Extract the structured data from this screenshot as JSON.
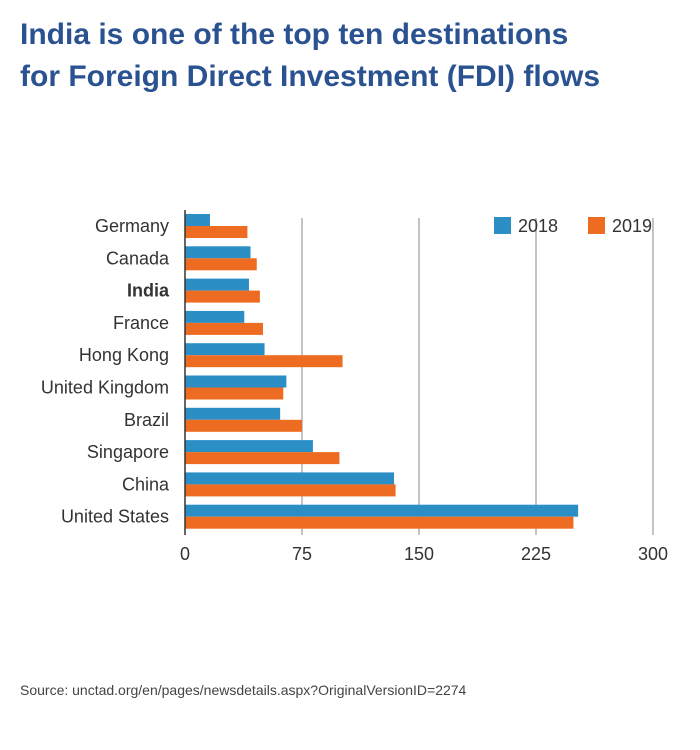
{
  "header": {
    "title_line1": "India is one of the top ten destinations",
    "title_line2": "for Foreign Direct Investment (FDI) flows"
  },
  "source": "Source: unctad.org/en/pages/newsdetails.aspx?OriginalVersionID=2274",
  "colors": {
    "title": "#2a5291",
    "series_2018": "#2b8fc6",
    "series_2019": "#ee6b22",
    "grid": "#b0b0b0",
    "text": "#333333"
  },
  "chart_data": {
    "type": "bar",
    "orientation": "horizontal",
    "categories": [
      "Germany",
      "Canada",
      "India",
      "France",
      "Hong Kong",
      "United Kingdom",
      "Brazil",
      "Singapore",
      "China",
      "United States"
    ],
    "highlight_category": "India",
    "series": [
      {
        "name": "2018",
        "color": "#2b8fc6",
        "values": [
          16,
          42,
          41,
          38,
          51,
          65,
          61,
          82,
          134,
          252
        ]
      },
      {
        "name": "2019",
        "color": "#ee6b22",
        "values": [
          40,
          46,
          48,
          50,
          101,
          63,
          75,
          99,
          135,
          249
        ]
      }
    ],
    "xticks": [
      0,
      75,
      150,
      225,
      300
    ],
    "xtick_labels": [
      "0",
      "75",
      "150",
      "225",
      "300"
    ],
    "xlim": [
      0,
      300
    ],
    "grid": "vertical",
    "legend": "top-right",
    "title": "",
    "xlabel": "",
    "ylabel": ""
  }
}
